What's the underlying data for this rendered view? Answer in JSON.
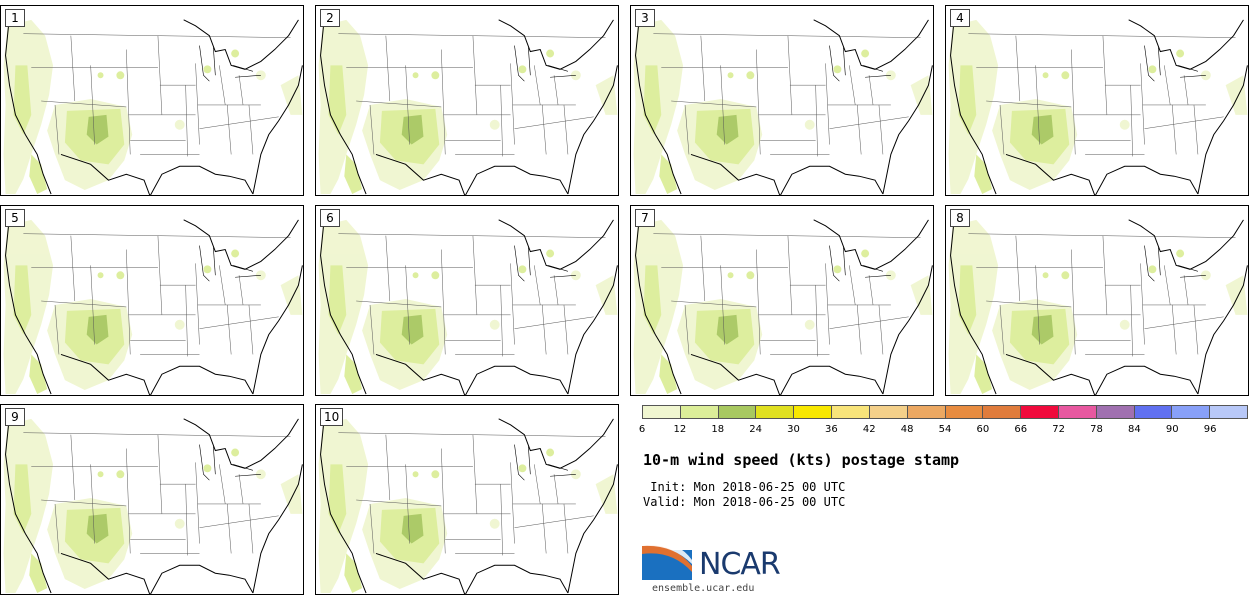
{
  "panels": [
    {
      "label": "1"
    },
    {
      "label": "2"
    },
    {
      "label": "3"
    },
    {
      "label": "4"
    },
    {
      "label": "5"
    },
    {
      "label": "6"
    },
    {
      "label": "7"
    },
    {
      "label": "8"
    },
    {
      "label": "9"
    },
    {
      "label": "10"
    }
  ],
  "colorbar": {
    "colors": [
      "#f0f6d0",
      "#dcee99",
      "#a8c860",
      "#e0e020",
      "#f8e800",
      "#f8e47a",
      "#f4d08a",
      "#eca862",
      "#e88c40",
      "#e07c3c",
      "#f00a3c",
      "#e858a0",
      "#a070b0",
      "#6070f0",
      "#88a0f8",
      "#b8c8f8"
    ],
    "tick_labels": [
      "6",
      "12",
      "18",
      "24",
      "30",
      "36",
      "42",
      "48",
      "54",
      "60",
      "66",
      "72",
      "78",
      "84",
      "90",
      "96"
    ]
  },
  "title": "10-m wind speed (kts) postage stamp",
  "init": " Init: Mon 2018-06-25 00 UTC",
  "valid": "Valid: Mon 2018-06-25 00 UTC",
  "logo": {
    "text": "NCAR",
    "url": "ensemble.ucar.edu",
    "colors": {
      "blue": "#1a70c0",
      "navy": "#1a3a6e",
      "orange": "#e07030"
    }
  }
}
